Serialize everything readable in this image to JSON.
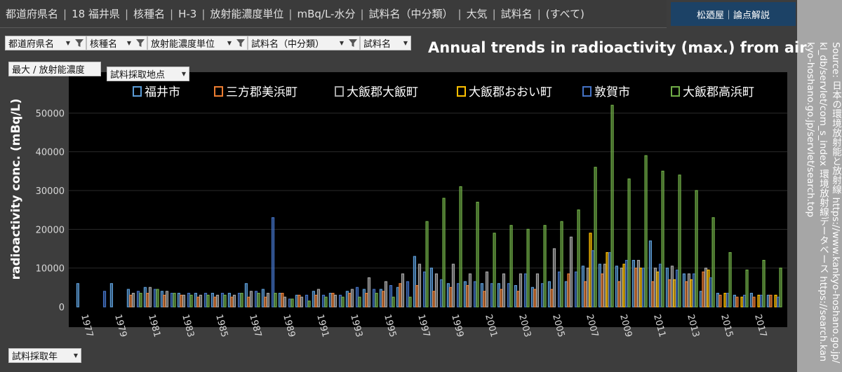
{
  "filters": {
    "summary": [
      "都道府県名",
      "18 福井県",
      "核種名",
      "H-3",
      "放射能濃度単位",
      "mBq/L-水分",
      "試料名（中分類）",
      "大気",
      "試料名",
      "(すべて)"
    ],
    "chips": [
      {
        "label": "都道府県名"
      },
      {
        "label": "核種名"
      },
      {
        "label": "放射能濃度単位"
      },
      {
        "label": "試料名（中分類）"
      },
      {
        "label": "試料名"
      }
    ],
    "value_field": "最大 / 放射能濃度",
    "series_field": "試料採取地点",
    "axis_field": "試料採取年"
  },
  "brand": "松廼屋｜論点解説",
  "source_text": "Source: 日本の環境放射能と放射線 https://www.kankyo-hoshano.go.jp/kl_db/servlet/com_s_index 環境放射線データベース https://search.kankyo-hoshano.go.jp/servlet/search.top",
  "colors": {
    "background": "#000000",
    "series": [
      "#5b9bd5",
      "#ed7d31",
      "#a5a5a5",
      "#ffc000",
      "#4472c4",
      "#70ad47"
    ]
  },
  "chart_data": {
    "type": "bar",
    "title": "Annual trends in radioactivity (max.) from air",
    "xlabel": "",
    "ylabel": "radioactivity conc. (mBq/L)",
    "ylim": [
      0,
      60000
    ],
    "yticks": [
      "0",
      "10000",
      "20000",
      "30000",
      "40000",
      "50000"
    ],
    "xtick_labels": [
      "1977",
      "1979",
      "1981",
      "1983",
      "1985",
      "1987",
      "1989",
      "1991",
      "1993",
      "1995",
      "1997",
      "1999",
      "2001",
      "2003",
      "2005",
      "2007",
      "2009",
      "2011",
      "2013",
      "2015",
      "2017"
    ],
    "legend_position": "top",
    "categories": [
      1977,
      1978,
      1979,
      1980,
      1981,
      1982,
      1983,
      1984,
      1985,
      1986,
      1987,
      1988,
      1989,
      1990,
      1991,
      1992,
      1993,
      1994,
      1995,
      1996,
      1997,
      1998,
      1999,
      2000,
      2001,
      2002,
      2003,
      2004,
      2005,
      2006,
      2007,
      2008,
      2009,
      2010,
      2011,
      2012,
      2013,
      2014,
      2015,
      2016,
      2017,
      2018
    ],
    "series": [
      {
        "name": "福井市",
        "values": [
          6000,
          null,
          6000,
          4500,
          5000,
          4000,
          3500,
          3500,
          3500,
          3500,
          6000,
          4500,
          3500,
          3000,
          4000,
          3500,
          4000,
          4500,
          4500,
          5000,
          13000,
          10000,
          6000,
          6500,
          6000,
          6000,
          5500,
          5000,
          6500,
          6500,
          10500,
          11000,
          10500,
          12000,
          17000,
          10000,
          8500,
          4000,
          3500,
          3000,
          3500,
          3000
        ]
      },
      {
        "name": "三方郡美浜町",
        "values": [
          null,
          null,
          null,
          3000,
          3500,
          3000,
          3000,
          2500,
          2500,
          2500,
          2500,
          2500,
          3500,
          3000,
          3000,
          3500,
          3500,
          3500,
          4000,
          6000,
          5500,
          4000,
          5000,
          5500,
          4000,
          4500,
          4000,
          4500,
          4500,
          8500,
          6500,
          8500,
          6500,
          10000,
          6500,
          7000,
          6500,
          9000,
          3000,
          2500,
          2500,
          3000
        ]
      },
      {
        "name": "大飯郡大飯町",
        "values": [
          null,
          null,
          null,
          3500,
          5000,
          4000,
          3000,
          3000,
          3000,
          3000,
          4000,
          3500,
          2500,
          2500,
          4500,
          3000,
          4500,
          7500,
          6500,
          8500,
          11000,
          8500,
          11000,
          8500,
          9000,
          8500,
          8500,
          8500,
          15000,
          18000,
          10000,
          11000,
          10000,
          12000,
          10000,
          10500,
          8500,
          10000,
          null,
          null,
          null,
          null
        ]
      },
      {
        "name": "大飯郡おおい町",
        "values": [
          null,
          null,
          null,
          null,
          null,
          null,
          null,
          null,
          null,
          null,
          null,
          null,
          null,
          null,
          null,
          null,
          null,
          null,
          null,
          null,
          null,
          null,
          null,
          null,
          null,
          null,
          null,
          null,
          null,
          null,
          19000,
          14000,
          11000,
          10000,
          9000,
          7000,
          7000,
          9500,
          3500,
          2500,
          3000,
          3000
        ]
      },
      {
        "name": "敦賀市",
        "values": [
          null,
          4000,
          null,
          4000,
          4500,
          3500,
          3500,
          3500,
          3500,
          3500,
          4000,
          23000,
          2000,
          3000,
          3000,
          3000,
          5000,
          4500,
          5500,
          6500,
          9000,
          7000,
          6000,
          6500,
          6000,
          6000,
          8500,
          6000,
          9000,
          9000,
          14500,
          14000,
          12000,
          10000,
          11000,
          9500,
          8500,
          7500,
          3500,
          3000,
          3000,
          2500
        ]
      },
      {
        "name": "大飯郡高浜町",
        "values": [
          null,
          null,
          null,
          3500,
          4500,
          3500,
          3000,
          3000,
          3000,
          3500,
          3500,
          3500,
          2000,
          1500,
          2500,
          2500,
          2500,
          3500,
          2500,
          2500,
          22000,
          28000,
          31000,
          27000,
          19000,
          21000,
          20000,
          21000,
          22000,
          25000,
          36000,
          52000,
          33000,
          39000,
          35000,
          34000,
          30000,
          23000,
          14000,
          9500,
          12000,
          10000
        ]
      }
    ]
  }
}
